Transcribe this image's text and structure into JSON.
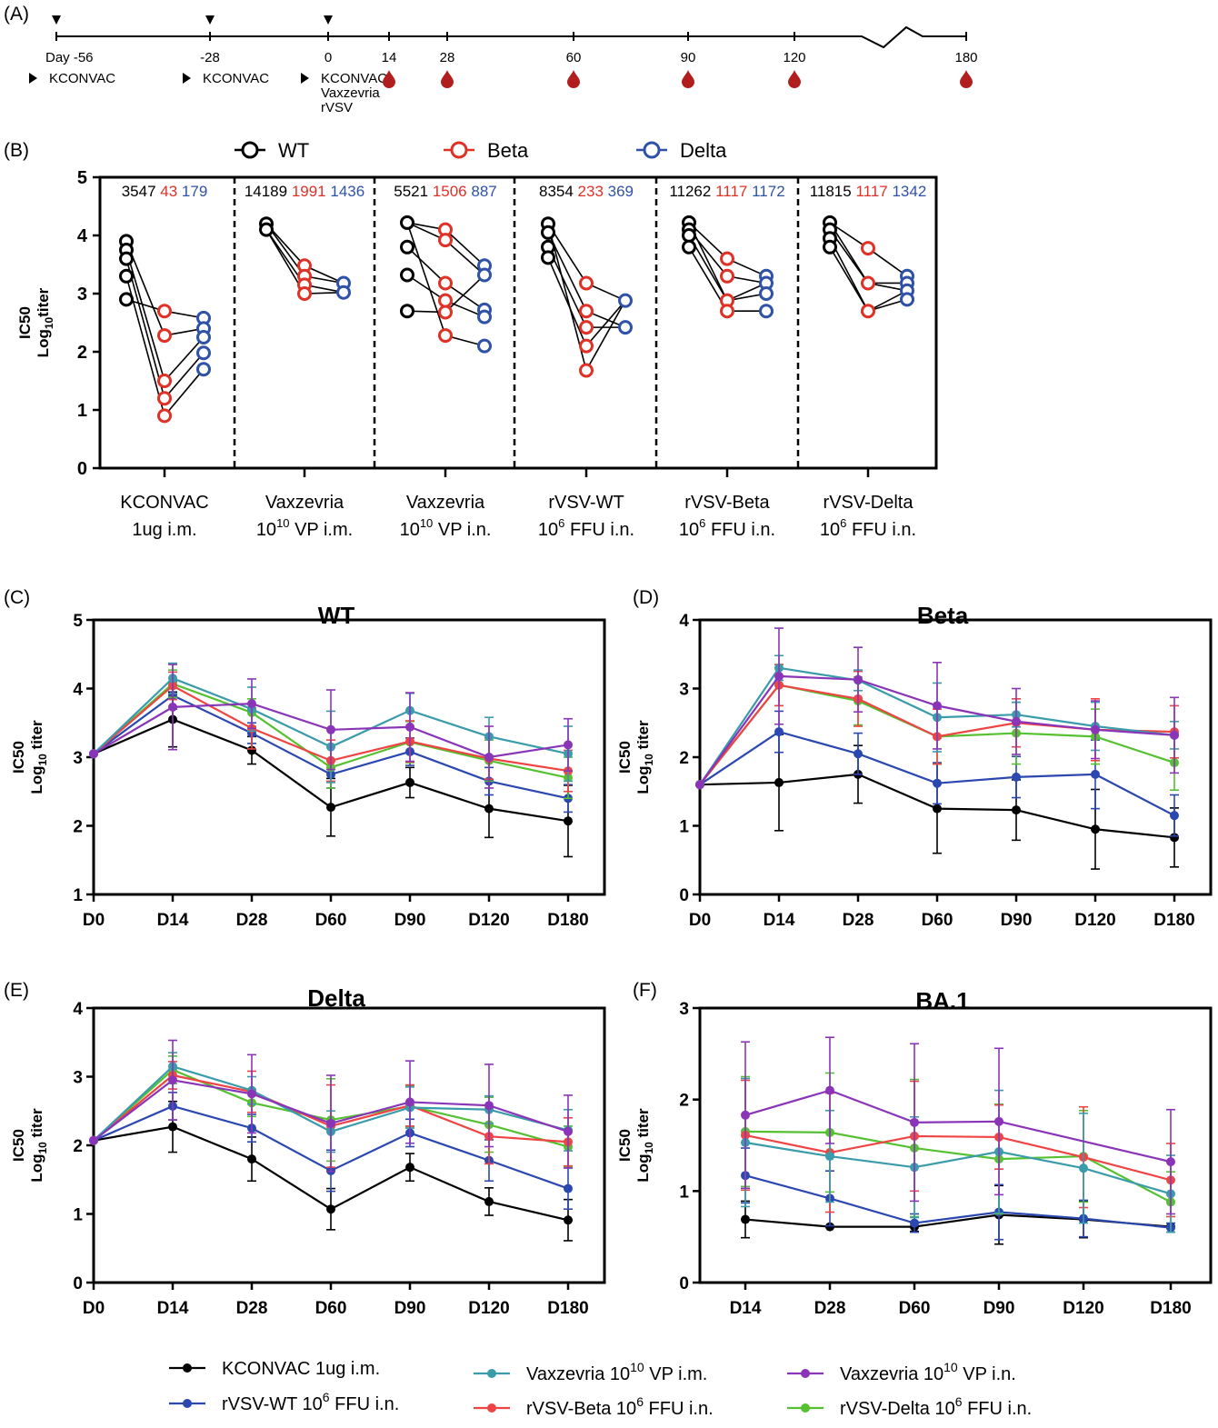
{
  "panel_labels": {
    "A": "(A)",
    "B": "(B)",
    "C": "(C)",
    "D": "(D)",
    "E": "(E)",
    "F": "(F)"
  },
  "timeline": {
    "day_labels": [
      {
        "day": -56,
        "label": "Day -56"
      },
      {
        "day": -28,
        "label": "-28"
      },
      {
        "day": 0,
        "label": "0"
      },
      {
        "day": 14,
        "label": "14"
      },
      {
        "day": 28,
        "label": "28"
      },
      {
        "day": 60,
        "label": "60"
      },
      {
        "day": 90,
        "label": "90"
      },
      {
        "day": 120,
        "label": "120"
      },
      {
        "day": 180,
        "label": "180"
      }
    ],
    "immunizations": [
      {
        "day": -56,
        "lines": [
          "KCONVAC"
        ]
      },
      {
        "day": -28,
        "lines": [
          "KCONVAC"
        ]
      },
      {
        "day": 0,
        "lines": [
          "KCONVAC",
          "Vaxzevria",
          "rVSV"
        ]
      }
    ],
    "bleed_days": [
      14,
      28,
      60,
      90,
      120,
      180
    ],
    "blood_color": "#b11e1e"
  },
  "colors": {
    "WT": "#000000",
    "Beta": "#e03127",
    "Delta": "#2f52a8",
    "KCONVAC": "#000000",
    "rVSV_WT": "#2b47b0",
    "Vaxzevria_im": "#3a9bab",
    "rVSV_Beta": "#ee4444",
    "Vaxzevria_in": "#8a35b8",
    "rVSV_Delta": "#55c030"
  },
  "chart_data": [
    {
      "id": "B",
      "type": "scatter",
      "ylabel_line1": "IC50",
      "ylabel_line2": "Log",
      "ylabel_sub": "10",
      "ylabel_tail": "titer",
      "ylim": [
        0,
        5
      ],
      "yticks": [
        0,
        1,
        2,
        3,
        4,
        5
      ],
      "legend": [
        {
          "name": "WT",
          "color": "#000000"
        },
        {
          "name": "Beta",
          "color": "#e03127"
        },
        {
          "name": "Delta",
          "color": "#2f52a8"
        }
      ],
      "groups": [
        {
          "name_line1": "KCONVAC",
          "name_line2": "1ug i.m.",
          "line2_sup": "",
          "gmt": [
            "3547",
            "43",
            "179"
          ],
          "WT": [
            3.9,
            3.75,
            3.6,
            3.3,
            2.9
          ],
          "Beta": [
            2.7,
            2.28,
            1.5,
            1.2,
            0.9
          ],
          "Delta": [
            2.58,
            2.4,
            2.25,
            1.98,
            1.7
          ],
          "links": [
            [
              3.9,
              2.28,
              2.4
            ],
            [
              3.75,
              1.5,
              2.25
            ],
            [
              3.6,
              1.2,
              1.98
            ],
            [
              3.3,
              0.9,
              1.7
            ],
            [
              2.9,
              2.7,
              2.58
            ]
          ]
        },
        {
          "name_line1": "Vaxzevria",
          "name_line2": " VP i.m.",
          "line2_pre": "10",
          "line2_sup": "10",
          "gmt": [
            "14189",
            "1991",
            "1436"
          ],
          "WT": [
            4.2,
            4.1
          ],
          "Beta": [
            3.48,
            3.3,
            3.15,
            3.0
          ],
          "Delta": [
            3.18,
            3.02
          ],
          "links": [
            [
              4.2,
              3.48,
              3.18
            ],
            [
              4.2,
              3.3,
              3.18
            ],
            [
              4.1,
              3.15,
              3.02
            ],
            [
              4.1,
              3.0,
              3.02
            ]
          ]
        },
        {
          "name_line1": "Vaxzevria",
          "name_line2": " VP i.n.",
          "line2_pre": "10",
          "line2_sup": "10",
          "gmt": [
            "5521",
            "1506",
            "887"
          ],
          "WT": [
            4.22,
            3.8,
            3.32,
            2.7
          ],
          "Beta": [
            4.1,
            3.92,
            3.18,
            2.88,
            2.68,
            2.28
          ],
          "Delta": [
            3.48,
            3.32,
            2.72,
            2.6,
            2.1
          ],
          "links": [
            [
              4.22,
              4.1,
              3.48
            ],
            [
              4.22,
              3.92,
              3.32
            ],
            [
              3.8,
              3.18,
              2.72
            ],
            [
              3.32,
              2.88,
              2.6
            ],
            [
              2.7,
              2.68,
              3.32
            ],
            [
              4.22,
              2.28,
              2.1
            ]
          ]
        },
        {
          "name_line1": "rVSV-WT",
          "name_line2": " FFU i.n.",
          "line2_pre": "10",
          "line2_sup": "6",
          "gmt": [
            "8354",
            "233",
            "369"
          ],
          "WT": [
            4.2,
            4.05,
            3.8,
            3.62
          ],
          "Beta": [
            3.18,
            2.7,
            2.42,
            2.1,
            1.68
          ],
          "Delta": [
            2.88,
            2.42
          ],
          "links": [
            [
              4.2,
              3.18,
              2.88
            ],
            [
              4.05,
              2.7,
              2.42
            ],
            [
              3.8,
              2.42,
              2.42
            ],
            [
              3.62,
              2.1,
              2.88
            ],
            [
              4.2,
              1.68,
              2.88
            ]
          ]
        },
        {
          "name_line1": "rVSV-Beta",
          "name_line2": " FFU i.n.",
          "line2_pre": "10",
          "line2_sup": "6",
          "gmt": [
            "11262",
            "1117",
            "1172"
          ],
          "WT": [
            4.22,
            4.1,
            4.0,
            3.8
          ],
          "Beta": [
            3.6,
            3.3,
            2.88,
            2.7
          ],
          "Delta": [
            3.3,
            3.18,
            3.0,
            2.7
          ],
          "links": [
            [
              4.22,
              3.6,
              3.3
            ],
            [
              4.1,
              3.3,
              3.18
            ],
            [
              4.0,
              2.88,
              3.0
            ],
            [
              3.8,
              2.7,
              2.7
            ],
            [
              4.22,
              2.88,
              3.18
            ]
          ]
        },
        {
          "name_line1": "rVSV-Delta",
          "name_line2": " FFU i.n.",
          "line2_pre": "10",
          "line2_sup": "6",
          "gmt": [
            "11815",
            "1117",
            "1342"
          ],
          "WT": [
            4.22,
            4.1,
            3.95,
            3.8
          ],
          "Beta": [
            3.78,
            3.18,
            2.7
          ],
          "Delta": [
            3.3,
            3.18,
            3.05,
            2.9
          ],
          "links": [
            [
              4.22,
              3.78,
              3.3
            ],
            [
              4.1,
              3.18,
              3.18
            ],
            [
              3.95,
              2.7,
              3.05
            ],
            [
              3.8,
              2.7,
              2.9
            ],
            [
              4.22,
              3.18,
              3.05
            ]
          ]
        }
      ]
    },
    {
      "id": "C",
      "type": "line",
      "title": "WT",
      "ylabel_line1": "IC50",
      "ylabel_line2": "Log",
      "ylabel_sub": "10",
      "ylabel_tail": " titer",
      "categories": [
        "D0",
        "D14",
        "D28",
        "D60",
        "D90",
        "D120",
        "D180"
      ],
      "ylim": [
        1,
        5
      ],
      "yticks": [
        1,
        2,
        3,
        4,
        5
      ],
      "series": [
        {
          "key": "KCONVAC",
          "values": [
            3.05,
            3.55,
            3.1,
            2.27,
            2.63,
            2.25,
            2.07
          ],
          "errors": [
            0,
            0.4,
            0.2,
            0.42,
            0.22,
            0.42,
            0.52
          ]
        },
        {
          "key": "rVSV_WT",
          "values": [
            3.05,
            3.9,
            3.35,
            2.75,
            3.08,
            2.65,
            2.4
          ],
          "errors": [
            0,
            0.2,
            0.15,
            0.2,
            0.2,
            0.2,
            0.2
          ]
        },
        {
          "key": "rVSV_Delta",
          "values": [
            3.05,
            4.07,
            3.65,
            2.85,
            3.22,
            2.95,
            2.7
          ],
          "errors": [
            0,
            0.2,
            0.2,
            0.3,
            0.3,
            0.3,
            0.3
          ]
        },
        {
          "key": "rVSV_Beta",
          "values": [
            3.05,
            4.04,
            3.42,
            2.95,
            3.23,
            2.98,
            2.8
          ],
          "errors": [
            0,
            0.2,
            0.3,
            0.3,
            0.3,
            0.3,
            0.3
          ]
        },
        {
          "key": "Vaxzevria_im",
          "values": [
            3.05,
            4.15,
            3.7,
            3.15,
            3.68,
            3.3,
            3.05
          ],
          "errors": [
            0,
            0.22,
            0.32,
            0.52,
            0.25,
            0.28,
            0.4
          ]
        },
        {
          "key": "Vaxzevria_in",
          "values": [
            3.05,
            3.73,
            3.78,
            3.4,
            3.44,
            3.0,
            3.18
          ],
          "errors": [
            0,
            0.62,
            0.36,
            0.58,
            0.5,
            0.45,
            0.38
          ]
        }
      ]
    },
    {
      "id": "D",
      "type": "line",
      "title": "Beta",
      "ylabel_line1": "IC50",
      "ylabel_line2": "Log",
      "ylabel_sub": "10",
      "ylabel_tail": " titer",
      "categories": [
        "D0",
        "D14",
        "D28",
        "D60",
        "D90",
        "D120",
        "D180"
      ],
      "ylim": [
        0,
        4
      ],
      "yticks": [
        0,
        1,
        2,
        3,
        4
      ],
      "series": [
        {
          "key": "KCONVAC",
          "values": [
            1.6,
            1.63,
            1.75,
            1.25,
            1.23,
            0.95,
            0.83
          ],
          "errors": [
            0,
            0.7,
            0.42,
            0.65,
            0.44,
            0.58,
            0.43
          ]
        },
        {
          "key": "rVSV_WT",
          "values": [
            1.6,
            2.37,
            2.05,
            1.62,
            1.71,
            1.75,
            1.15
          ],
          "errors": [
            0,
            0.3,
            0.3,
            0.3,
            0.3,
            0.5,
            0.3
          ]
        },
        {
          "key": "rVSV_Delta",
          "values": [
            1.6,
            3.05,
            2.82,
            2.3,
            2.35,
            2.3,
            1.92
          ],
          "errors": [
            0,
            0.3,
            0.35,
            0.4,
            0.45,
            0.4,
            0.4
          ]
        },
        {
          "key": "rVSV_Beta",
          "values": [
            1.6,
            3.05,
            2.85,
            2.3,
            2.5,
            2.4,
            2.37
          ],
          "errors": [
            0,
            0.3,
            0.4,
            0.4,
            0.35,
            0.45,
            0.38
          ]
        },
        {
          "key": "Vaxzevria_im",
          "values": [
            1.6,
            3.3,
            3.12,
            2.58,
            2.62,
            2.45,
            2.32
          ],
          "errors": [
            0,
            0.18,
            0.15,
            0.5,
            0.18,
            0.35,
            0.2
          ]
        },
        {
          "key": "Vaxzevria_in",
          "values": [
            1.6,
            3.18,
            3.13,
            2.75,
            2.52,
            2.4,
            2.32
          ],
          "errors": [
            0,
            0.7,
            0.47,
            0.63,
            0.48,
            0.42,
            0.55
          ]
        }
      ]
    },
    {
      "id": "E",
      "type": "line",
      "title": "Delta",
      "ylabel_line1": "IC50",
      "ylabel_line2": "Log",
      "ylabel_sub": "10",
      "ylabel_tail": " titer",
      "categories": [
        "D0",
        "D14",
        "D28",
        "D60",
        "D90",
        "D120",
        "D180"
      ],
      "ylim": [
        0,
        4
      ],
      "yticks": [
        0,
        1,
        2,
        3,
        4
      ],
      "series": [
        {
          "key": "KCONVAC",
          "values": [
            2.07,
            2.27,
            1.8,
            1.07,
            1.68,
            1.18,
            0.91
          ],
          "errors": [
            0,
            0.37,
            0.32,
            0.3,
            0.2,
            0.2,
            0.3
          ]
        },
        {
          "key": "rVSV_WT",
          "values": [
            2.07,
            2.57,
            2.25,
            1.63,
            2.18,
            1.78,
            1.37
          ],
          "errors": [
            0,
            0.2,
            0.2,
            0.3,
            0.2,
            0.3,
            0.3
          ]
        },
        {
          "key": "rVSV_Delta",
          "values": [
            2.07,
            3.1,
            2.62,
            2.37,
            2.57,
            2.3,
            1.98
          ],
          "errors": [
            0,
            0.2,
            0.2,
            0.6,
            0.3,
            0.4,
            0.3
          ]
        },
        {
          "key": "rVSV_Beta",
          "values": [
            2.07,
            3.02,
            2.78,
            2.28,
            2.58,
            2.13,
            2.05
          ],
          "errors": [
            0,
            0.2,
            0.3,
            0.6,
            0.3,
            0.4,
            0.35
          ]
        },
        {
          "key": "Vaxzevria_im",
          "values": [
            2.07,
            3.15,
            2.8,
            2.2,
            2.55,
            2.52,
            2.22
          ],
          "errors": [
            0,
            0.2,
            0.2,
            0.3,
            0.3,
            0.2,
            0.3
          ]
        },
        {
          "key": "Vaxzevria_in",
          "values": [
            2.07,
            2.95,
            2.75,
            2.32,
            2.63,
            2.58,
            2.2
          ],
          "errors": [
            0,
            0.58,
            0.57,
            0.7,
            0.6,
            0.6,
            0.53
          ]
        }
      ]
    },
    {
      "id": "F",
      "type": "line",
      "title": "BA.1",
      "ylabel_line1": "IC50",
      "ylabel_line2": "Log",
      "ylabel_sub": "10",
      "ylabel_tail": " titer",
      "categories": [
        "D14",
        "D28",
        "D60",
        "D90",
        "D120",
        "D180"
      ],
      "ylim": [
        0,
        3
      ],
      "yticks": [
        0,
        1,
        2,
        3
      ],
      "series": [
        {
          "key": "KCONVAC",
          "values": [
            0.69,
            0.61,
            0.61,
            0.74,
            0.69,
            0.61
          ],
          "errors": [
            0.2,
            0,
            0.05,
            0.32,
            0.2,
            0
          ]
        },
        {
          "key": "rVSV_WT",
          "values": [
            1.17,
            0.92,
            0.65,
            0.77,
            0.7,
            0.6
          ],
          "errors": [
            0.3,
            0.3,
            0.1,
            0.3,
            0.2,
            0.05
          ]
        },
        {
          "key": "rVSV_Delta",
          "values": [
            1.65,
            1.64,
            1.47,
            1.35,
            1.38,
            0.88
          ],
          "errors": [
            0.6,
            0.65,
            0.75,
            0.6,
            0.5,
            0.33
          ]
        },
        {
          "key": "rVSV_Beta",
          "values": [
            1.61,
            1.42,
            1.6,
            1.59,
            1.37,
            1.12
          ],
          "errors": [
            0.6,
            0.65,
            0.6,
            0.35,
            0.55,
            0.4
          ]
        },
        {
          "key": "Vaxzevria_im",
          "values": [
            1.53,
            1.38,
            1.26,
            1.43,
            1.25,
            0.97
          ],
          "errors": [
            0.7,
            0.5,
            0.55,
            0.67,
            0.6,
            0.42
          ]
        },
        {
          "key": "Vaxzevria_in",
          "values": [
            1.83,
            2.1,
            1.75,
            1.76,
            null,
            1.32
          ],
          "errors": [
            0.8,
            0.58,
            0.86,
            0.8,
            0,
            0.57
          ]
        }
      ]
    }
  ],
  "legend_bottom": [
    {
      "key": "KCONVAC",
      "pre": "KCONVAC 1ug i.m.",
      "sup": "",
      "post": ""
    },
    {
      "key": "rVSV_WT",
      "pre": "rVSV-WT 10",
      "sup": "6",
      "post": "  FFU i.n."
    },
    {
      "key": "Vaxzevria_im",
      "pre": "Vaxzevria 10",
      "sup": "10",
      "post": "  VP i.m."
    },
    {
      "key": "rVSV_Beta",
      "pre": "rVSV-Beta 10",
      "sup": "6",
      "post": "  FFU i.n."
    },
    {
      "key": "Vaxzevria_in",
      "pre": "Vaxzevria 10",
      "sup": "10",
      "post": "  VP i.n."
    },
    {
      "key": "rVSV_Delta",
      "pre": "rVSV-Delta 10",
      "sup": "6",
      "post": "  FFU i.n."
    }
  ]
}
